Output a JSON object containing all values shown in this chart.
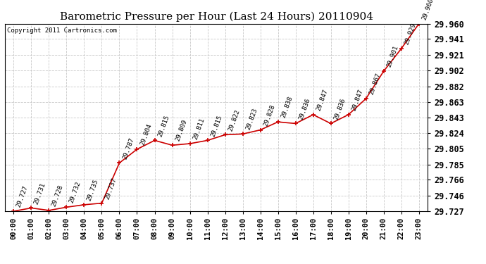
{
  "title": "Barometric Pressure per Hour (Last 24 Hours) 20110904",
  "copyright": "Copyright 2011 Cartronics.com",
  "hours": [
    "00:00",
    "01:00",
    "02:00",
    "03:00",
    "04:00",
    "05:00",
    "06:00",
    "07:00",
    "08:00",
    "09:00",
    "10:00",
    "11:00",
    "12:00",
    "13:00",
    "14:00",
    "15:00",
    "16:00",
    "17:00",
    "18:00",
    "19:00",
    "20:00",
    "21:00",
    "22:00",
    "23:00"
  ],
  "pressures": [
    29.727,
    29.731,
    29.728,
    29.732,
    29.735,
    29.737,
    29.787,
    29.804,
    29.815,
    29.809,
    29.811,
    29.815,
    29.822,
    29.823,
    29.828,
    29.838,
    29.836,
    29.847,
    29.836,
    29.847,
    29.867,
    29.901,
    29.929,
    29.96
  ],
  "ylim_min": 29.727,
  "ylim_max": 29.96,
  "yticks": [
    29.727,
    29.746,
    29.766,
    29.785,
    29.805,
    29.824,
    29.843,
    29.863,
    29.882,
    29.902,
    29.921,
    29.941,
    29.96
  ],
  "line_color": "#cc0000",
  "marker_color": "#cc0000",
  "bg_color": "#ffffff",
  "grid_color": "#c8c8c8",
  "title_fontsize": 11,
  "tick_fontsize": 7.5,
  "annotation_fontsize": 6.5,
  "copyright_fontsize": 6.5
}
